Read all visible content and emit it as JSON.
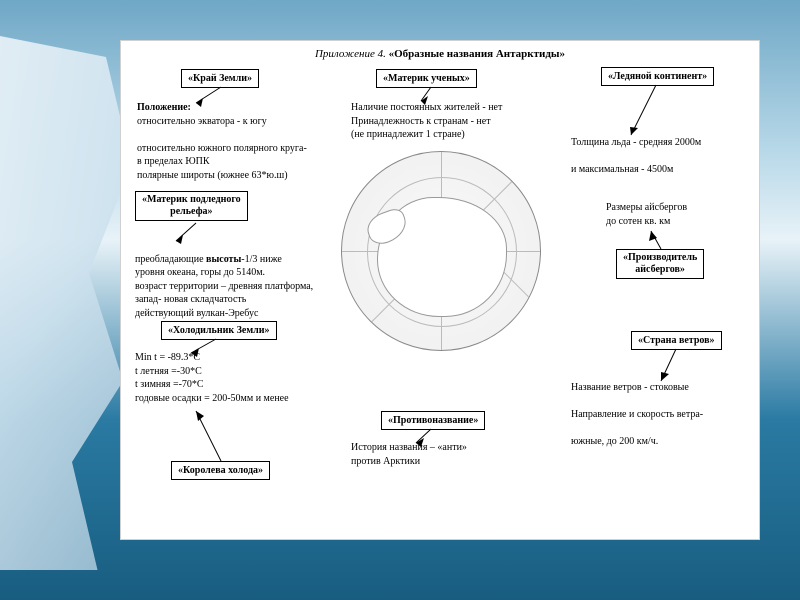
{
  "title_prefix": "Приложение 4.",
  "title_main": "«Образные названия Антарктиды»",
  "boxes": {
    "kray": "«Край Земли»",
    "uchenykh": "«Материк ученых»",
    "ledyanoy": "«Ледяной континент»",
    "podlednogo": "«Материк подледного\nрельефа»",
    "kholodilnik": "«Холодильник Земли»",
    "koroleva": "«Королева холода»",
    "protivonazvanie": "«Противоназвание»",
    "aisbergov": "«Производитель\nайсбергов»",
    "vetrov": "«Страна ветров»"
  },
  "text": {
    "polozhenie_hdr": "Положение:",
    "polozhenie": "относительно экватора - к югу\n\nотносительно южного полярного круга-\nв пределах ЮПК\nполярные широты (южнее 63*ю.ш)",
    "zhiteli": "Наличие постоянных жителей - нет\nПринадлежность к странам - нет\n(не принадлежит 1 стране)",
    "led": "Толщина льда - средняя 2000м\n\n        и максимальная - 4500м",
    "aisberg_size": "Размеры айсбергов\nдо сотен кв. км",
    "relief": "преобладающие высоты-1/3 ниже\nуровня океана, горы до 5140м.\nвозраст территории – древняя платформа,\nзапад- новая складчатость\nдействующий вулкан-Эребус",
    "klimat": "Min t = -89.3*C\nt летняя =-30*С\nt зимняя =-70*С\nгодовые осадки = 200-50мм и менее",
    "istoriya": "История названия – «анти»\nпротив Арктики",
    "vetry": "Название ветров - стоковые\n\nНаправление и скорость ветра-\n\nюжные, до 200 км/ч."
  },
  "style": {
    "box_border": "#000000",
    "text_color": "#000000",
    "paper_bg": "#ffffff",
    "font_body": 10,
    "font_title": 11
  }
}
